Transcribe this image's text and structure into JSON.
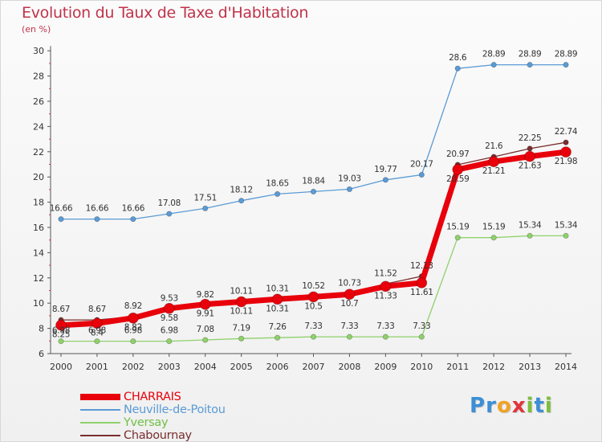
{
  "title": "Evolution du Taux de Taxe d'Habitation",
  "unit_label": "(en %)",
  "logo": {
    "text": "Proxiti",
    "letters": [
      "P",
      "r",
      "o",
      "x",
      "i",
      "t",
      "i"
    ],
    "colors": [
      "#3b8fd6",
      "#3b8fd6",
      "#f2a227",
      "#e2343b",
      "#7bbf3a",
      "#3b8fd6",
      "#7bbf3a"
    ]
  },
  "chart_data": {
    "type": "line",
    "title": "Evolution du Taux de Taxe d'Habitation",
    "ylabel": "(en %)",
    "xlabel": "",
    "x": [
      "2000",
      "2001",
      "2002",
      "2003",
      "2004",
      "2005",
      "2006",
      "2007",
      "2008",
      "2009",
      "2010",
      "2011",
      "2012",
      "2013",
      "2014"
    ],
    "ylim": [
      6,
      30
    ],
    "yticks": [
      "6",
      "8",
      "10",
      "12",
      "14",
      "16",
      "18",
      "20",
      "22",
      "24",
      "26",
      "28",
      "30"
    ],
    "grid": false,
    "legend_position": "bottom-left",
    "series": [
      {
        "name": "CHARRAIS",
        "color": "#e8000b",
        "values": [
          8.25,
          8.4,
          8.82,
          9.58,
          9.91,
          10.11,
          10.31,
          10.5,
          10.7,
          11.33,
          11.61,
          20.59,
          21.21,
          21.63,
          21.98
        ],
        "labels": [
          "8.25",
          "8.4",
          "8.82",
          "9.58",
          "9.91",
          "10.11",
          "10.31",
          "10.5",
          "10.7",
          "11.33",
          "11.61",
          "20.59",
          "21.21",
          "21.63",
          "21.98"
        ]
      },
      {
        "name": "Neuville-de-Poitou",
        "color": "#5b9bd5",
        "values": [
          16.66,
          16.66,
          16.66,
          17.08,
          17.51,
          18.12,
          18.65,
          18.84,
          19.03,
          19.77,
          20.17,
          28.6,
          28.89,
          28.89,
          28.89
        ],
        "labels": [
          "16.66",
          "16.66",
          "16.66",
          "17.08",
          "17.51",
          "18.12",
          "18.65",
          "18.84",
          "19.03",
          "19.77",
          "20.17",
          "28.6",
          "28.89",
          "28.89",
          "28.89"
        ]
      },
      {
        "name": "Yversay",
        "color": "#8fd16b",
        "values": [
          6.98,
          6.98,
          6.98,
          6.98,
          7.08,
          7.19,
          7.26,
          7.33,
          7.33,
          7.33,
          7.33,
          15.19,
          15.19,
          15.34,
          15.34
        ],
        "labels": [
          "6.98",
          "6.98",
          "6.98",
          "6.98",
          "7.08",
          "7.19",
          "7.26",
          "7.33",
          "7.33",
          "7.33",
          "7.33",
          "15.19",
          "15.19",
          "15.34",
          "15.34"
        ]
      },
      {
        "name": "Chabournay",
        "color": "#7a2e2e",
        "values": [
          8.67,
          8.67,
          8.92,
          9.53,
          9.82,
          10.11,
          10.31,
          10.52,
          10.73,
          11.52,
          12.13,
          20.97,
          21.6,
          22.25,
          22.74
        ],
        "labels": [
          "8.67",
          "8.67",
          "8.92",
          "9.53",
          "9.82",
          "10.11",
          "10.31",
          "10.52",
          "10.73",
          "11.52",
          "12.13",
          "20.97",
          "21.6",
          "22.25",
          "22.74"
        ]
      }
    ]
  }
}
